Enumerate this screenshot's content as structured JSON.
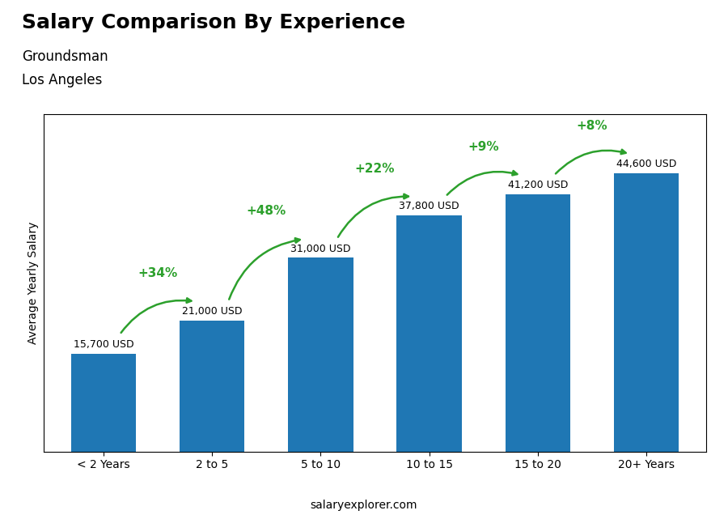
{
  "chart_data": {
    "type": "bar",
    "title": "Salary Comparison By Experience",
    "subtitle": [
      "Groundsman",
      "Los Angeles"
    ],
    "categories": [
      "< 2 Years",
      "2 to 5",
      "5 to 10",
      "10 to 15",
      "15 to 20",
      "20+ Years"
    ],
    "values": [
      15700,
      21000,
      31000,
      37800,
      41200,
      44600
    ],
    "value_labels": [
      "15,700 USD",
      "21,000 USD",
      "31,000 USD",
      "37,800 USD",
      "41,200 USD",
      "44,600 USD"
    ],
    "data_labels": true,
    "annotations": [
      "+34%",
      "+48%",
      "+22%",
      "+9%",
      "+8%"
    ],
    "ylabel": "Average Yearly Salary",
    "footer": "salaryexplorer.com",
    "ylim": [
      0,
      54000
    ],
    "tick_labels": "x",
    "grid": false
  }
}
